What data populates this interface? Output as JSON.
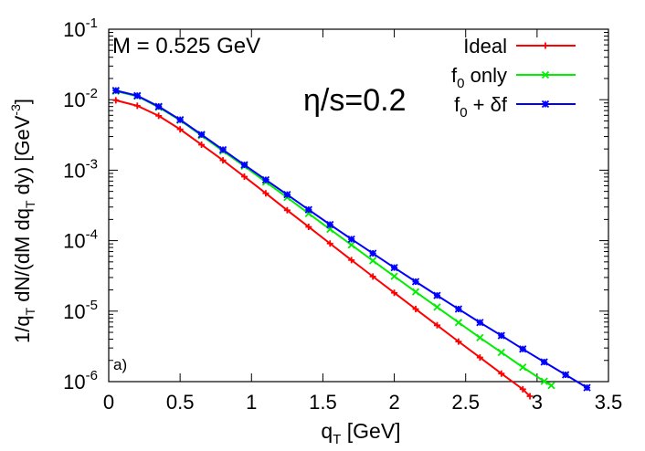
{
  "chart_data": {
    "type": "line",
    "xlabel": "q",
    "xlabel_sub": "T",
    "xlabel_unit": " [GeV]",
    "ylabel_parts": [
      "1/q",
      "T",
      " dN/(dM dq",
      "T",
      " dy) [GeV",
      "-3",
      "]"
    ],
    "xlim": [
      0,
      3.5
    ],
    "ylim": [
      1e-06,
      0.1
    ],
    "yscale": "log",
    "grid": false,
    "legend_position": "top-right",
    "x_ticks": [
      0,
      0.5,
      1,
      1.5,
      2,
      2.5,
      3,
      3.5
    ],
    "x_tick_labels": [
      "0",
      "0.5",
      "1",
      "1.5",
      "2",
      "2.5",
      "3",
      "3.5"
    ],
    "y_tick_exponents": [
      -6,
      -5,
      -4,
      -3,
      -2,
      -1
    ],
    "annotations": {
      "mass": "M = 0.525 GeV",
      "eta_s": "η/s=0.2",
      "panel": "a)"
    },
    "series": [
      {
        "name": "Ideal",
        "legend_main": "Ideal",
        "legend_sub": "",
        "legend_rest": "",
        "color": "#ff0000",
        "marker": "plus",
        "x": [
          0.05,
          0.2,
          0.35,
          0.5,
          0.65,
          0.8,
          0.95,
          1.1,
          1.25,
          1.4,
          1.55,
          1.7,
          1.85,
          2.0,
          2.15,
          2.3,
          2.45,
          2.6,
          2.75,
          2.9,
          2.95
        ],
        "y": [
          0.0098,
          0.0082,
          0.0059,
          0.0038,
          0.0023,
          0.00138,
          0.00081,
          0.00047,
          0.00027,
          0.000157,
          9.1e-05,
          5.3e-05,
          3.1e-05,
          1.82e-05,
          1.07e-05,
          6.3e-06,
          3.7e-06,
          2.2e-06,
          1.3e-06,
          7.8e-07,
          6.2e-07
        ]
      },
      {
        "name": "f0 only",
        "legend_main": "f",
        "legend_sub": "0",
        "legend_rest": " only",
        "color": "#00ee00",
        "marker": "cross",
        "x": [
          0.05,
          0.2,
          0.35,
          0.5,
          0.65,
          0.8,
          0.95,
          1.1,
          1.25,
          1.4,
          1.55,
          1.7,
          1.85,
          2.0,
          2.15,
          2.3,
          2.45,
          2.6,
          2.75,
          2.9,
          3.05,
          3.1
        ],
        "y": [
          0.0132,
          0.0112,
          0.0078,
          0.0051,
          0.0031,
          0.00187,
          0.00114,
          0.00068,
          0.00041,
          0.000243,
          0.000145,
          8.7e-05,
          5.2e-05,
          3.12e-05,
          1.88e-05,
          1.14e-05,
          6.9e-06,
          4.2e-06,
          2.6e-06,
          1.6e-06,
          1.01e-06,
          8.8e-07
        ]
      },
      {
        "name": "f0 + δf",
        "legend_main": "f",
        "legend_sub": "0",
        "legend_rest": " + δf",
        "color": "#0000ff",
        "marker": "box",
        "x": [
          0.05,
          0.2,
          0.35,
          0.5,
          0.65,
          0.8,
          0.95,
          1.1,
          1.25,
          1.4,
          1.55,
          1.7,
          1.85,
          2.0,
          2.15,
          2.3,
          2.45,
          2.6,
          2.75,
          2.9,
          3.05,
          3.2,
          3.35
        ],
        "y": [
          0.0135,
          0.0114,
          0.008,
          0.0052,
          0.0032,
          0.00195,
          0.00119,
          0.00073,
          0.00045,
          0.000275,
          0.000169,
          0.000105,
          6.6e-05,
          4.14e-05,
          2.62e-05,
          1.67e-05,
          1.07e-05,
          6.9e-06,
          4.5e-06,
          2.9e-06,
          1.9e-06,
          1.25e-06,
          8.2e-07
        ]
      }
    ]
  }
}
